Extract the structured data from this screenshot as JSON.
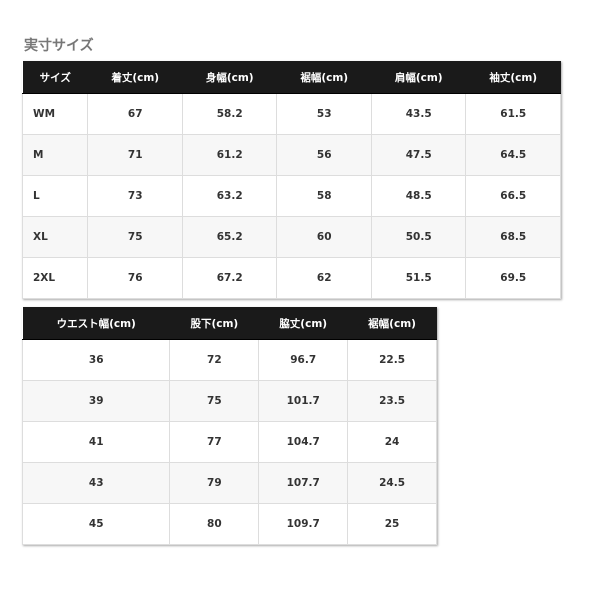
{
  "title": "実寸サイズ",
  "table1": {
    "headers": [
      "サイズ",
      "着丈(cm)",
      "身幅(cm)",
      "裾幅(cm)",
      "肩幅(cm)",
      "袖丈(cm)"
    ],
    "rows": [
      [
        "WM",
        "67",
        "58.2",
        "53",
        "43.5",
        "61.5"
      ],
      [
        "M",
        "71",
        "61.2",
        "56",
        "47.5",
        "64.5"
      ],
      [
        "L",
        "73",
        "63.2",
        "58",
        "48.5",
        "66.5"
      ],
      [
        "XL",
        "75",
        "65.2",
        "60",
        "50.5",
        "68.5"
      ],
      [
        "2XL",
        "76",
        "67.2",
        "62",
        "51.5",
        "69.5"
      ]
    ]
  },
  "table2": {
    "headers": [
      "ウエスト幅(cm)",
      "股下(cm)",
      "脇丈(cm)",
      "裾幅(cm)"
    ],
    "rows": [
      [
        "36",
        "72",
        "96.7",
        "22.5"
      ],
      [
        "39",
        "75",
        "101.7",
        "23.5"
      ],
      [
        "41",
        "77",
        "104.7",
        "24"
      ],
      [
        "43",
        "79",
        "107.7",
        "24.5"
      ],
      [
        "45",
        "80",
        "109.7",
        "25"
      ]
    ]
  }
}
